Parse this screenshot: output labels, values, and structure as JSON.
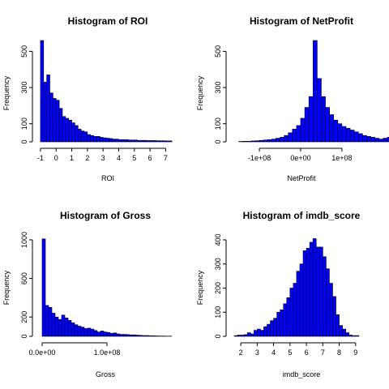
{
  "colors": {
    "bar_fill": "#0000ff",
    "bar_stroke": "#000000",
    "axis": "#000000",
    "background": "#ffffff"
  },
  "chart_data": [
    {
      "type": "bar",
      "title": "Histogram of ROI",
      "xlabel": "ROI",
      "ylabel": "Frequency",
      "xlim": [
        -1.1,
        7.6
      ],
      "ylim": [
        0,
        560
      ],
      "bin_start": -1,
      "bin_width": 0.2,
      "values": [
        560,
        330,
        370,
        270,
        240,
        230,
        185,
        140,
        130,
        120,
        105,
        90,
        70,
        60,
        55,
        40,
        35,
        30,
        30,
        25,
        22,
        20,
        18,
        15,
        15,
        12,
        12,
        12,
        10,
        10,
        10,
        8,
        8,
        8,
        7,
        7,
        7,
        6,
        6,
        6,
        5,
        5
      ],
      "x_ticks": [
        -1,
        0,
        1,
        2,
        3,
        4,
        5,
        6,
        7
      ],
      "x_tick_labels": [
        "-1",
        "0",
        "1",
        "2",
        "3",
        "4",
        "5",
        "6",
        "7"
      ],
      "y_ticks": [
        0,
        100,
        300,
        500
      ],
      "y_tick_labels": [
        "0",
        "100",
        "300",
        "500"
      ]
    },
    {
      "type": "bar",
      "title": "Histogram of NetProfit",
      "xlabel": "NetProfit",
      "ylabel": "Frequency",
      "xlim": [
        -165000000,
        165000000
      ],
      "ylim": [
        0,
        560
      ],
      "bin_start": -150000000,
      "bin_width": 10000000,
      "values": [
        2,
        3,
        3,
        5,
        6,
        8,
        10,
        12,
        15,
        20,
        25,
        35,
        50,
        70,
        90,
        130,
        190,
        250,
        560,
        350,
        250,
        190,
        150,
        120,
        100,
        85,
        75,
        65,
        55,
        45,
        35,
        30,
        25,
        20,
        15,
        20,
        25,
        15
      ],
      "x_ticks": [
        -100000000,
        0,
        100000000
      ],
      "x_tick_labels": [
        "-1e+08",
        "0e+00",
        "1e+08"
      ],
      "y_ticks": [
        0,
        100,
        300,
        500
      ],
      "y_tick_labels": [
        "0",
        "100",
        "300",
        "500"
      ]
    },
    {
      "type": "bar",
      "title": "Histogram of Gross",
      "xlabel": "Gross",
      "ylabel": "Frequency",
      "xlim": [
        -5000000,
        205000000
      ],
      "ylim": [
        0,
        1050
      ],
      "bin_start": 0,
      "bin_width": 5000000,
      "values": [
        1010,
        320,
        300,
        240,
        200,
        175,
        220,
        190,
        165,
        140,
        120,
        105,
        95,
        80,
        85,
        75,
        60,
        45,
        55,
        45,
        40,
        30,
        35,
        25,
        20,
        20,
        18,
        15,
        15,
        12,
        10,
        8,
        8,
        6,
        5,
        4,
        3,
        3,
        2,
        2
      ],
      "x_ticks": [
        0,
        100000000
      ],
      "x_tick_labels": [
        "0.0e+00",
        "1.0e+08"
      ],
      "y_ticks": [
        0,
        200,
        600,
        1000
      ],
      "y_tick_labels": [
        "0",
        "200",
        "600",
        "1000"
      ]
    },
    {
      "type": "bar",
      "title": "Histogram of imdb_score",
      "xlabel": "imdb_score",
      "ylabel": "Frequency",
      "xlim": [
        1.5,
        9.8
      ],
      "ylim": [
        0,
        420
      ],
      "bin_start": 1.6,
      "bin_width": 0.2,
      "values": [
        3,
        5,
        5,
        7,
        15,
        10,
        25,
        30,
        25,
        40,
        50,
        65,
        75,
        100,
        110,
        135,
        160,
        200,
        220,
        270,
        300,
        355,
        365,
        390,
        405,
        370,
        370,
        330,
        280,
        220,
        165,
        90,
        45,
        30,
        15,
        5,
        3,
        3
      ],
      "x_ticks": [
        2,
        3,
        4,
        5,
        6,
        7,
        8,
        9
      ],
      "x_tick_labels": [
        "2",
        "3",
        "4",
        "5",
        "6",
        "7",
        "8",
        "9"
      ],
      "y_ticks": [
        0,
        100,
        200,
        300,
        400
      ],
      "y_tick_labels": [
        "0",
        "100",
        "200",
        "300",
        "400"
      ]
    }
  ]
}
